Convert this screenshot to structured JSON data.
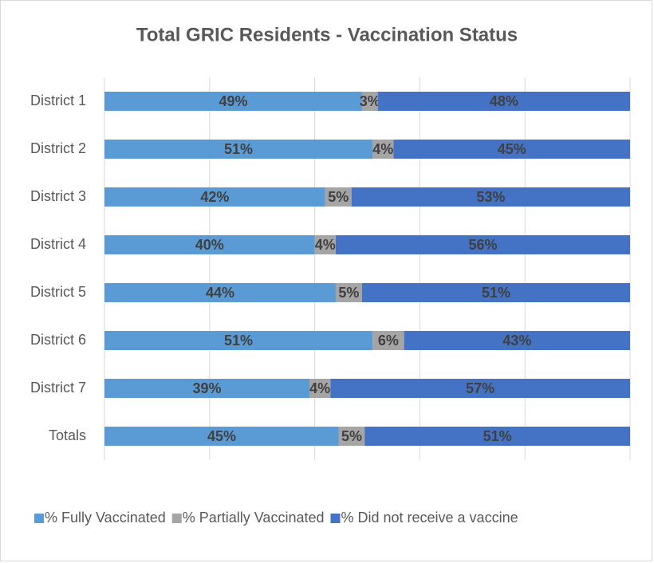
{
  "chart_data": {
    "type": "stacked_barh",
    "title": "Total GRIC Residents - Vaccination Status",
    "categories": [
      "District 1",
      "District 2",
      "District 3",
      "District 4",
      "District 5",
      "District 6",
      "District 7",
      "Totals"
    ],
    "series": [
      {
        "name": "% Fully Vaccinated",
        "color": "#5b9bd5",
        "values": [
          49,
          51,
          42,
          40,
          44,
          51,
          39,
          44.6
        ],
        "value_labels": [
          "49%",
          "51%",
          "42%",
          "40%",
          "44%",
          "51%",
          "39%",
          "45%"
        ]
      },
      {
        "name": "% Partially Vaccinated",
        "color": "#a5a5a5",
        "values": [
          3,
          4,
          5,
          4,
          5,
          6,
          4,
          4.9
        ],
        "value_labels": [
          "3%",
          "4%",
          "5%",
          "4%",
          "5%",
          "6%",
          "4%",
          "5%"
        ]
      },
      {
        "name": "% Did not receive a vaccine",
        "color": "#4472c4",
        "values": [
          48,
          45,
          53,
          56,
          51,
          43,
          57,
          50.5
        ],
        "value_labels": [
          "48%",
          "45%",
          "53%",
          "56%",
          "51%",
          "43%",
          "57%",
          "51%"
        ]
      }
    ],
    "xlim": [
      0,
      100
    ],
    "xticks": [
      0,
      20,
      40,
      60,
      80,
      100
    ],
    "grid": true,
    "legend": "bottom"
  }
}
